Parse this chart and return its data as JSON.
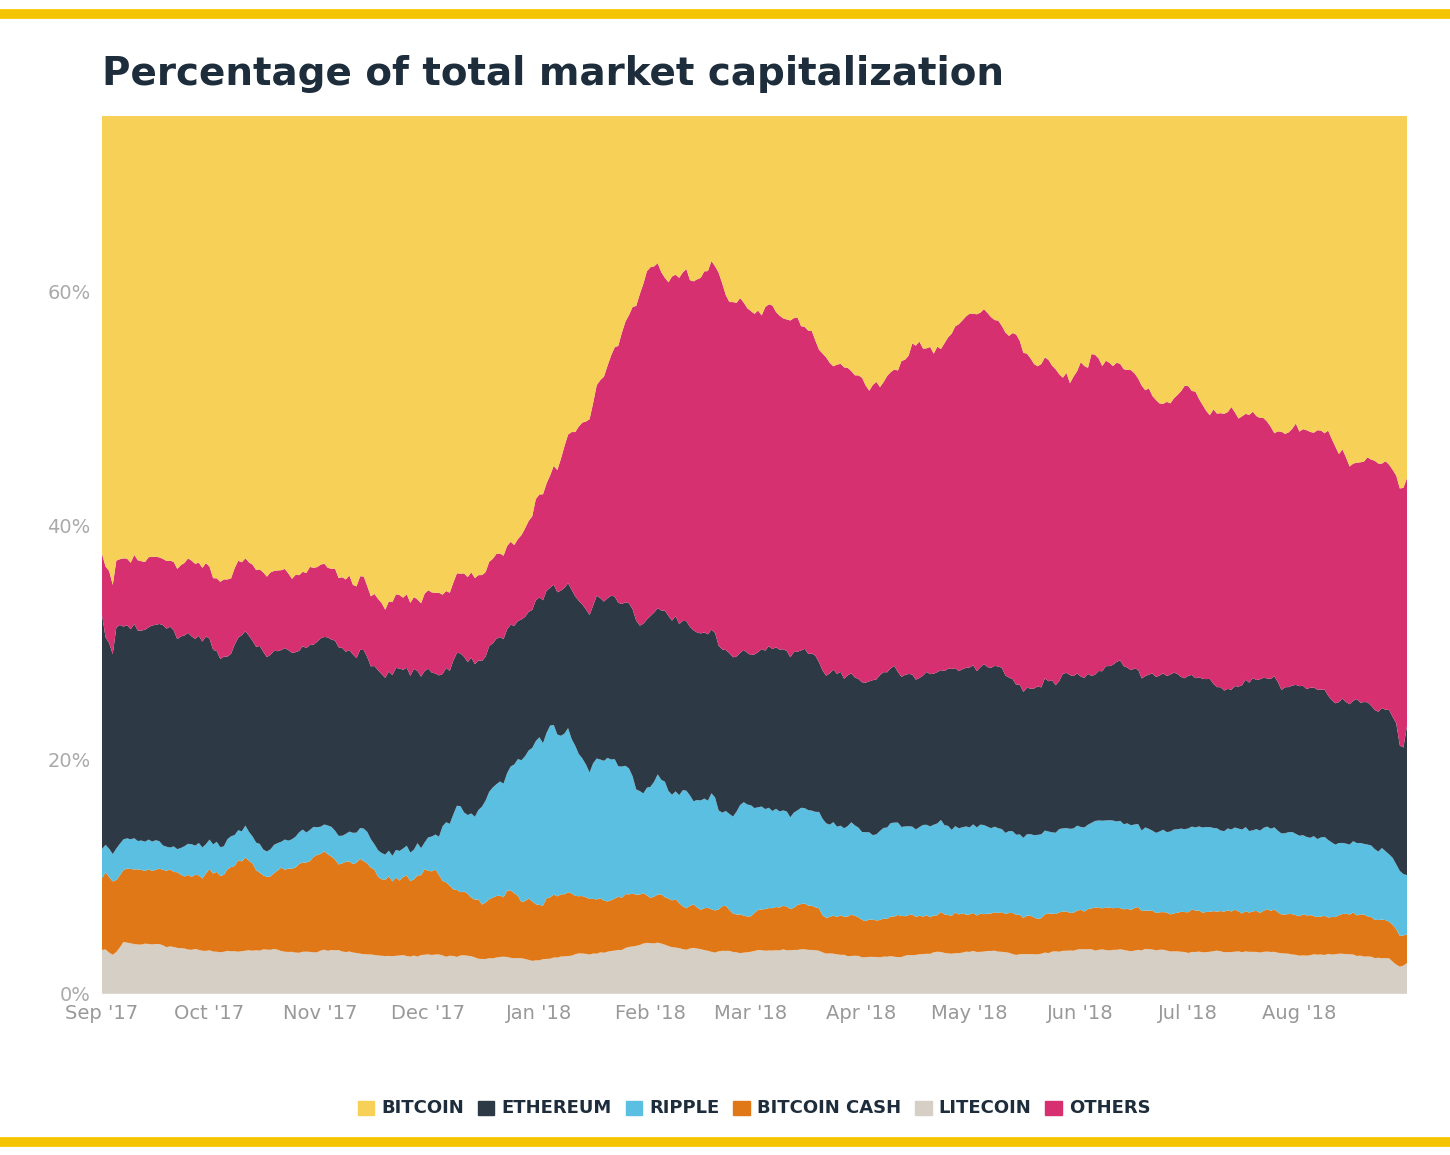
{
  "title": "Percentage of total market capitalization",
  "title_color": "#1e2d3b",
  "background_color": "#ffffff",
  "border_color": "#f5c400",
  "colors": {
    "bitcoin": "#f7d058",
    "others": "#d63070",
    "ethereum": "#2d3a45",
    "ripple": "#5abfe0",
    "bitcoin_cash": "#e07818",
    "litecoin": "#d5cfc5"
  },
  "legend_labels": [
    "BITCOIN",
    "ETHEREUM",
    "RIPPLE",
    "BITCOIN CASH",
    "LITECOIN",
    "OTHERS"
  ],
  "legend_colors": [
    "#f7d058",
    "#2d3a45",
    "#5abfe0",
    "#e07818",
    "#d5cfc5",
    "#d63070"
  ],
  "xtick_labels": [
    "Sep '17",
    "Oct '17",
    "Nov '17",
    "Dec '17",
    "Jan '18",
    "Feb '18",
    "Mar '18",
    "Apr '18",
    "May '18",
    "Jun '18",
    "Jul '18",
    "Aug '18"
  ],
  "month_positions": [
    0,
    30,
    61,
    91,
    122,
    153,
    181,
    212,
    242,
    273,
    303,
    334
  ],
  "yticks": [
    0,
    20,
    40,
    60
  ],
  "ylim": [
    0,
    75
  ],
  "n_days": 365,
  "grid_color": "#e8e8e8",
  "tick_color": "#aaaaaa",
  "xtick_color": "#999999"
}
